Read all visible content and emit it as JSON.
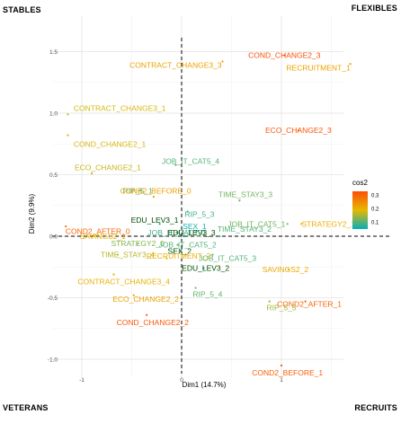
{
  "corners": {
    "top_left": "STABLES",
    "top_right": "FLEXIBLES",
    "bottom_left": "VETERANS",
    "bottom_right": "RECRUITS"
  },
  "chart_data": {
    "type": "scatter",
    "xlabel": "Dim1 (14.7%)",
    "ylabel": "Dim2 (9.9%)",
    "xlim": [
      -1.1,
      1.2
    ],
    "ylim": [
      -1.15,
      1.7
    ],
    "x_ticks": [
      -1,
      0,
      1
    ],
    "x_tick_labels": [
      "-1",
      "0",
      "1"
    ],
    "y_ticks": [
      -1.0,
      -0.5,
      0.0,
      0.5,
      1.0,
      1.5
    ],
    "y_tick_labels": [
      "-1.0",
      "-0.5",
      "0.0",
      "0.5",
      "1.0",
      "1.5"
    ],
    "grid": true,
    "reference_lines": [
      "x = 0 dashed",
      "y = 0 dashed"
    ],
    "color_by": "cos2",
    "legend": {
      "title": "cos2",
      "placement": "right",
      "ticks": [
        0.1,
        0.2,
        0.3
      ],
      "tick_labels": [
        "0.1",
        "0.2",
        "0.3"
      ],
      "gradient": [
        "#00AFBB",
        "#E7B800",
        "#FC4E07"
      ]
    },
    "points": [
      {
        "label": "COND_CHANGE2_3",
        "x": 1.03,
        "y": 1.47,
        "cos2": 0.33
      },
      {
        "label": "CONTRACT_CHANGE3_3",
        "x": 0.41,
        "y": 1.42,
        "cos2": 0.22
      },
      {
        "label": "RECRUITMENT_1",
        "x": 1.69,
        "y": 1.4,
        "cos2": 0.22
      },
      {
        "label": "CONTRACT_CHANGE3_1",
        "x": -1.14,
        "y": 0.99,
        "cos2": 0.18
      },
      {
        "label": "ECO_CHANGE2_3",
        "x": 1.17,
        "y": 0.86,
        "cos2": 0.32
      },
      {
        "label": "COND_CHANGE2_1",
        "x": -1.14,
        "y": 0.82,
        "cos2": 0.18
      },
      {
        "label": "JOB_IT_CAT5_4",
        "x": -0.06,
        "y": 0.58,
        "cos2": 0.1
      },
      {
        "label": "ECO_CHANGE2_1",
        "x": -0.9,
        "y": 0.51,
        "cos2": 0.17
      },
      {
        "label": "RIP_5_1",
        "x": -0.42,
        "y": 0.37,
        "cos2": 0.11
      },
      {
        "label": "COND2_BEFORE_0",
        "x": -0.28,
        "y": 0.32,
        "cos2": 0.22
      },
      {
        "label": "TIME_STAY3_3",
        "x": 0.58,
        "y": 0.29,
        "cos2": 0.12
      },
      {
        "label": "RIP_5_3",
        "x": 0.06,
        "y": 0.2,
        "cos2": 0.09
      },
      {
        "label": "EDU_LEV3_1",
        "x": -0.22,
        "y": 0.1,
        "cos2": 0.05
      },
      {
        "label": "JOB_IT_CAT5_1",
        "x": 1.06,
        "y": 0.1,
        "cos2": 0.12
      },
      {
        "label": "STRATEGY2_1",
        "x": 1.2,
        "y": 0.1,
        "cos2": 0.2
      },
      {
        "label": "COND2_AFTER_0",
        "x": -1.16,
        "y": 0.08,
        "cos2": 0.3
      },
      {
        "label": "SEX_1",
        "x": 0.15,
        "y": 0.04,
        "cos2": 0.06
      },
      {
        "label": "JOB_IT_CAT5_0",
        "x": -0.05,
        "y": 0.03,
        "cos2": 0.09
      },
      {
        "label": "SAVINGS2_1",
        "x": -0.88,
        "y": 0.0,
        "cos2": 0.2
      },
      {
        "label": "TIME_STAY3_2",
        "x": 0.38,
        "y": 0.0,
        "cos2": 0.1
      },
      {
        "label": "EDU_LEV3_3",
        "x": 0.02,
        "y": 0.0,
        "cos2": 0.04
      },
      {
        "label": "STRATEGY2_0",
        "x": -0.44,
        "y": -0.06,
        "cos2": 0.13
      },
      {
        "label": "JOB_IT_CAT5_2",
        "x": -0.04,
        "y": -0.07,
        "cos2": 0.1
      },
      {
        "label": "SEX_2",
        "x": -0.02,
        "y": -0.12,
        "cos2": 0.06
      },
      {
        "label": "TIME_STAY3_4",
        "x": -0.64,
        "y": -0.15,
        "cos2": 0.16
      },
      {
        "label": "JOB_IT_CAT5_3",
        "x": 0.31,
        "y": -0.15,
        "cos2": 0.1
      },
      {
        "label": "RECRUITMENT_2",
        "x": -0.15,
        "y": -0.18,
        "cos2": 0.2
      },
      {
        "label": "EDU_LEV3_2",
        "x": 0.22,
        "y": -0.26,
        "cos2": 0.05
      },
      {
        "label": "SAVINGS2_2",
        "x": 1.07,
        "y": -0.27,
        "cos2": 0.21
      },
      {
        "label": "CONTRACT_CHANGE3_4",
        "x": -0.68,
        "y": -0.31,
        "cos2": 0.2
      },
      {
        "label": "RIP_5_4",
        "x": 0.14,
        "y": -0.42,
        "cos2": 0.11
      },
      {
        "label": "ECO_CHANGE2_2",
        "x": -0.48,
        "y": -0.48,
        "cos2": 0.22
      },
      {
        "label": "RIP_5_5",
        "x": 0.88,
        "y": -0.53,
        "cos2": 0.15
      },
      {
        "label": "COND2_AFTER_1",
        "x": 1.24,
        "y": -0.53,
        "cos2": 0.3
      },
      {
        "label": "COND_CHANGE2_2",
        "x": -0.35,
        "y": -0.64,
        "cos2": 0.32
      },
      {
        "label": "COND2_BEFORE_1",
        "x": 1.0,
        "y": -1.05,
        "cos2": 0.31
      }
    ]
  }
}
